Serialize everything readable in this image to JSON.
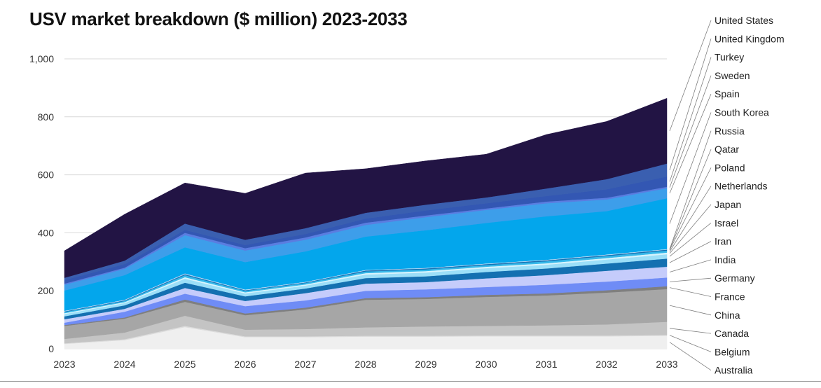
{
  "chart_data": {
    "type": "area",
    "stacked": true,
    "title": "USV market breakdown ($ million) 2023-2033",
    "xlabel": "",
    "ylabel": "",
    "x": [
      "2023",
      "2024",
      "2025",
      "2026",
      "2027",
      "2028",
      "2029",
      "2030",
      "2031",
      "2032",
      "2033"
    ],
    "ylim": [
      0,
      1000
    ],
    "yticks": [
      0,
      200,
      400,
      600,
      800,
      1000
    ],
    "ytick_labels": [
      "0",
      "200",
      "400",
      "600",
      "800",
      "1,000"
    ],
    "grid": true,
    "legend_position": "right",
    "series": [
      {
        "name": "Australia",
        "color": "#efefef",
        "values": [
          17,
          30,
          75,
          40,
          40,
          42,
          42,
          43,
          43,
          43,
          45
        ]
      },
      {
        "name": "Belgium",
        "color": "#dcdcdc",
        "values": [
          2,
          3,
          4,
          3,
          3,
          3,
          3,
          3,
          3,
          3,
          3
        ]
      },
      {
        "name": "Canada",
        "color": "#c4c4c4",
        "values": [
          15,
          23,
          35,
          23,
          25,
          29,
          32,
          33,
          35,
          38,
          45
        ]
      },
      {
        "name": "China",
        "color": "#a6a6a6",
        "values": [
          45,
          48,
          48,
          50,
          68,
          95,
          95,
          100,
          103,
          110,
          113
        ]
      },
      {
        "name": "France",
        "color": "#7f7f7f",
        "values": [
          3,
          4,
          8,
          6,
          6,
          6,
          6,
          7,
          7,
          8,
          10
        ]
      },
      {
        "name": "Germany",
        "color": "#6f8cf6",
        "values": [
          8,
          20,
          20,
          25,
          25,
          25,
          27,
          27,
          30,
          30,
          30
        ]
      },
      {
        "name": "India",
        "color": "#c5ccfb",
        "values": [
          12,
          10,
          20,
          18,
          25,
          25,
          25,
          30,
          33,
          37,
          37
        ]
      },
      {
        "name": "Iran",
        "color": "#1470b1",
        "values": [
          10,
          12,
          18,
          16,
          16,
          19,
          20,
          22,
          23,
          25,
          28
        ]
      },
      {
        "name": "Israel",
        "color": "#9cdff8",
        "values": [
          8,
          8,
          14,
          10,
          10,
          12,
          13,
          13,
          13,
          14,
          15
        ]
      },
      {
        "name": "Japan",
        "color": "#d8f4fd",
        "values": [
          3,
          3,
          5,
          4,
          4,
          5,
          5,
          5,
          5,
          5,
          6
        ]
      },
      {
        "name": "Netherlands",
        "color": "#36b8e9",
        "values": [
          4,
          4,
          7,
          5,
          5,
          6,
          6,
          6,
          7,
          7,
          7
        ]
      },
      {
        "name": "Poland",
        "color": "#1470b1",
        "values": [
          2,
          2,
          3,
          2,
          2,
          3,
          3,
          3,
          3,
          3,
          3
        ]
      },
      {
        "name": "Qatar",
        "color": "#8fb5e6",
        "values": [
          1,
          1,
          2,
          1,
          1,
          1,
          1,
          1,
          1,
          1,
          1
        ]
      },
      {
        "name": "Russia",
        "color": "#ffffff",
        "values": [
          1,
          1,
          1,
          1,
          1,
          1,
          1,
          1,
          1,
          1,
          1
        ]
      },
      {
        "name": "South Korea",
        "color": "#03a6ec",
        "values": [
          70,
          85,
          90,
          95,
          105,
          115,
          130,
          140,
          150,
          150,
          175
        ]
      },
      {
        "name": "Spain",
        "color": "#3d9eea",
        "values": [
          20,
          22,
          42,
          40,
          40,
          40,
          45,
          45,
          45,
          40,
          35
        ]
      },
      {
        "name": "Sweden",
        "color": "#5a7de0",
        "values": [
          4,
          4,
          8,
          8,
          8,
          8,
          6,
          5,
          6,
          6,
          5
        ]
      },
      {
        "name": "Turkey",
        "color": "#3357b3",
        "values": [
          12,
          12,
          10,
          11,
          12,
          14,
          17,
          18,
          19,
          29,
          35
        ]
      },
      {
        "name": "United Kingdom",
        "color": "#3a5fb0",
        "values": [
          8,
          12,
          22,
          18,
          20,
          20,
          20,
          20,
          26,
          35,
          45
        ]
      },
      {
        "name": "United States",
        "color": "#221444",
        "values": [
          93,
          160,
          140,
          160,
          190,
          152,
          151,
          149,
          186,
          199,
          225
        ]
      }
    ]
  }
}
